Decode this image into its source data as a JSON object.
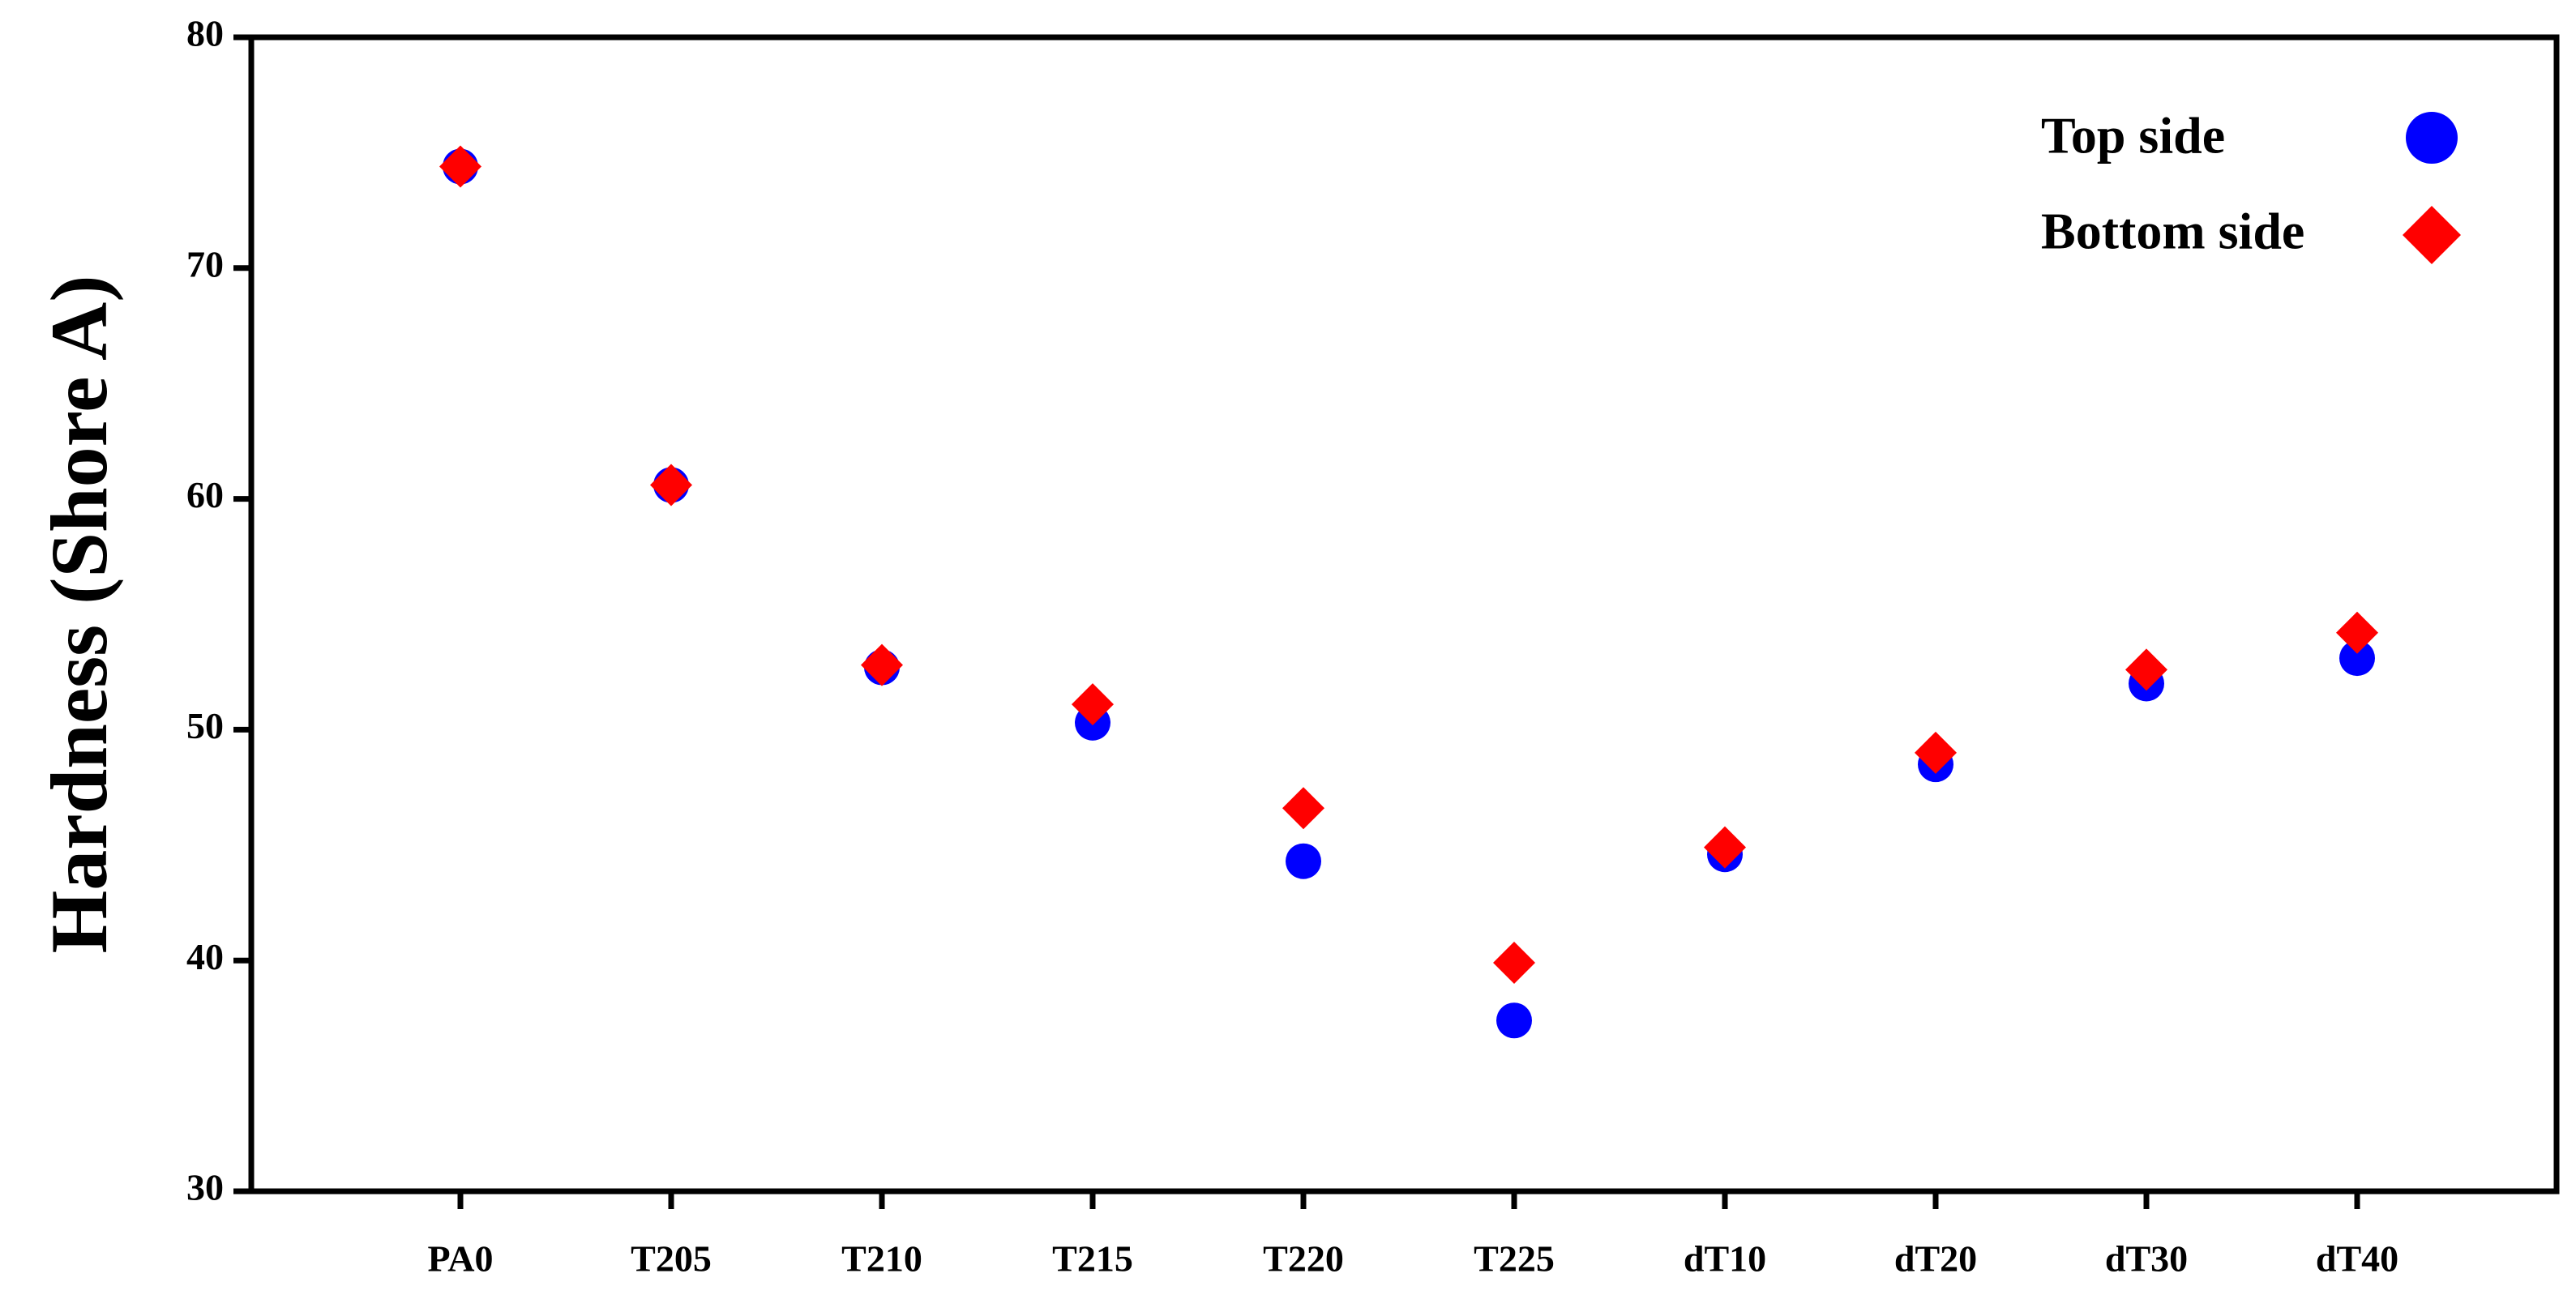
{
  "chart_data": {
    "type": "scatter",
    "title": "",
    "xlabel": "",
    "ylabel": "Hardness (Shore A)",
    "ylim": [
      30,
      80
    ],
    "yticks": [
      "30",
      "40",
      "50",
      "60",
      "70",
      "80"
    ],
    "categories": [
      "PA0",
      "T205",
      "T210",
      "T215",
      "T220",
      "T225",
      "dT10",
      "dT20",
      "dT30",
      "dT40"
    ],
    "series": [
      {
        "name": "Top side",
        "marker": "circle",
        "color": "#0000ff",
        "values": [
          74.4,
          60.6,
          52.7,
          50.3,
          44.3,
          37.4,
          44.6,
          48.5,
          52.0,
          53.1
        ]
      },
      {
        "name": "Bottom side",
        "marker": "diamond",
        "color": "#ff0000",
        "values": [
          74.4,
          60.6,
          52.8,
          51.1,
          46.6,
          39.9,
          44.9,
          49.0,
          52.6,
          54.2
        ]
      }
    ],
    "legend_position": "top-right",
    "grid": false
  }
}
